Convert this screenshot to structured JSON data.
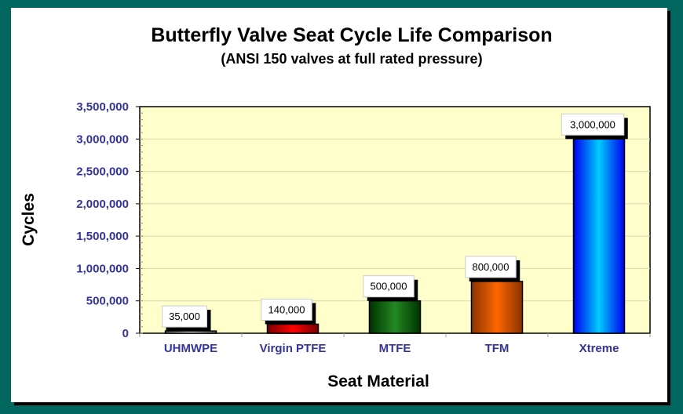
{
  "chart_data": {
    "type": "bar",
    "title": "Butterfly Valve Seat Cycle Life Comparison",
    "subtitle": "(ANSI 150 valves at full rated pressure)",
    "xlabel": "Seat Material",
    "ylabel": "Cycles",
    "categories": [
      "UHMWPE",
      "Virgin PTFE",
      "MTFE",
      "TFM",
      "Xtreme"
    ],
    "values": [
      35000,
      140000,
      500000,
      800000,
      3000000
    ],
    "data_labels": [
      "35,000",
      "140,000",
      "500,000",
      "800,000",
      "3,000,000"
    ],
    "ylim": [
      0,
      3500000
    ],
    "yticks": [
      0,
      500000,
      1000000,
      1500000,
      2000000,
      2500000,
      3000000,
      3500000
    ],
    "ytick_labels": [
      "0",
      "500,000",
      "1,000,000",
      "1,500,000",
      "2,000,000",
      "2,500,000",
      "3,000,000",
      "3,500,000"
    ],
    "grid": true,
    "colors": {
      "plot_background": "#ffffcc",
      "bars": [
        [
          "#666666",
          "#dddddd"
        ],
        [
          "#770000",
          "#ff0000"
        ],
        [
          "#003300",
          "#228822"
        ],
        [
          "#883300",
          "#ff6600"
        ],
        [
          "#0000ee",
          "#00ccff"
        ]
      ],
      "frame": "#00665e",
      "tick_text": "#333399"
    }
  }
}
